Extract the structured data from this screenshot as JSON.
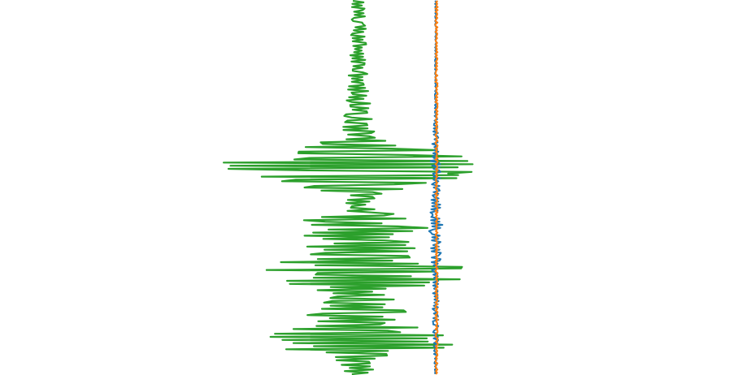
{
  "chart_data": {
    "type": "line",
    "orientation": "vertical-traces",
    "title": "",
    "xlabel": "",
    "ylabel": "",
    "axes_visible": false,
    "grid": false,
    "legend": "none",
    "y_points": 240,
    "series": [
      {
        "color": "#2ca02c",
        "center": 441,
        "envelope": [
          [
            0,
            8
          ],
          [
            60,
            10
          ],
          [
            120,
            14
          ],
          [
            165,
            22
          ],
          [
            178,
            55
          ],
          [
            190,
            135
          ],
          [
            203,
            175
          ],
          [
            215,
            150
          ],
          [
            228,
            95
          ],
          [
            240,
            25
          ],
          [
            255,
            15
          ],
          [
            268,
            60
          ],
          [
            285,
            105
          ],
          [
            300,
            70
          ],
          [
            318,
            80
          ],
          [
            332,
            150
          ],
          [
            345,
            125
          ],
          [
            360,
            40
          ],
          [
            372,
            60
          ],
          [
            385,
            75
          ],
          [
            395,
            55
          ],
          [
            410,
            105
          ],
          [
            425,
            140
          ],
          [
            440,
            35
          ],
          [
            462,
            12
          ]
        ]
      },
      {
        "color": "#1f77b4",
        "center": 536,
        "envelope": [
          [
            0,
            1
          ],
          [
            100,
            1
          ],
          [
            150,
            2
          ],
          [
            185,
            5
          ],
          [
            200,
            7
          ],
          [
            225,
            5
          ],
          [
            255,
            6
          ],
          [
            282,
            9
          ],
          [
            300,
            6
          ],
          [
            318,
            8
          ],
          [
            340,
            3
          ],
          [
            380,
            4
          ],
          [
            420,
            3
          ],
          [
            462,
            1
          ]
        ]
      },
      {
        "color": "#ff7f0e",
        "center": 537,
        "envelope": [
          [
            0,
            1.5
          ],
          [
            200,
            1.5
          ],
          [
            300,
            1.5
          ],
          [
            462,
            1.5
          ]
        ]
      }
    ]
  }
}
